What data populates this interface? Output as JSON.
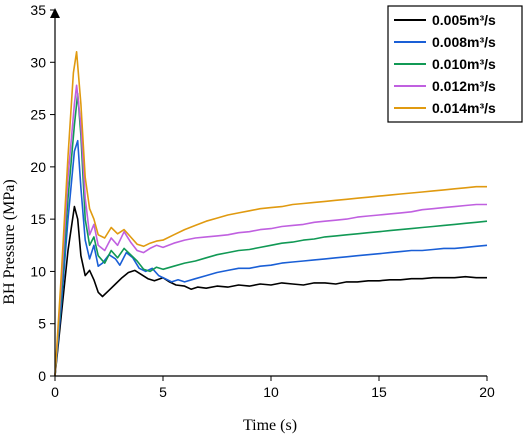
{
  "chart_data": {
    "type": "line",
    "title": "",
    "xlabel": "Time (s)",
    "ylabel": "BH Pressure (MPa)",
    "xlim": [
      0,
      20
    ],
    "ylim": [
      0,
      35
    ],
    "x_ticks": [
      0,
      5,
      10,
      15,
      20
    ],
    "y_ticks": [
      0,
      5,
      10,
      15,
      20,
      25,
      30,
      35
    ],
    "grid": false,
    "legend_position": "top-right",
    "series": [
      {
        "name": "0.005m³/s",
        "color": "#000000",
        "points": [
          [
            0,
            0
          ],
          [
            0.3,
            6
          ],
          [
            0.6,
            12
          ],
          [
            0.9,
            16.2
          ],
          [
            1.05,
            15
          ],
          [
            1.2,
            11.5
          ],
          [
            1.4,
            9.6
          ],
          [
            1.6,
            10.1
          ],
          [
            1.8,
            9.2
          ],
          [
            2.0,
            8.0
          ],
          [
            2.2,
            7.6
          ],
          [
            2.5,
            8.2
          ],
          [
            2.8,
            8.8
          ],
          [
            3.1,
            9.4
          ],
          [
            3.4,
            9.9
          ],
          [
            3.7,
            10.1
          ],
          [
            4.0,
            9.7
          ],
          [
            4.3,
            9.3
          ],
          [
            4.6,
            9.1
          ],
          [
            5.0,
            9.4
          ],
          [
            5.3,
            9.0
          ],
          [
            5.6,
            8.7
          ],
          [
            6.0,
            8.6
          ],
          [
            6.3,
            8.3
          ],
          [
            6.6,
            8.5
          ],
          [
            7.0,
            8.4
          ],
          [
            7.5,
            8.6
          ],
          [
            8.0,
            8.5
          ],
          [
            8.5,
            8.7
          ],
          [
            9.0,
            8.6
          ],
          [
            9.5,
            8.8
          ],
          [
            10.0,
            8.7
          ],
          [
            10.5,
            8.9
          ],
          [
            11.0,
            8.8
          ],
          [
            11.5,
            8.7
          ],
          [
            12.0,
            8.9
          ],
          [
            12.5,
            8.9
          ],
          [
            13.0,
            8.8
          ],
          [
            13.5,
            9.0
          ],
          [
            14.0,
            9.0
          ],
          [
            14.5,
            9.1
          ],
          [
            15.0,
            9.1
          ],
          [
            15.5,
            9.2
          ],
          [
            16.0,
            9.2
          ],
          [
            16.5,
            9.3
          ],
          [
            17.0,
            9.3
          ],
          [
            17.5,
            9.4
          ],
          [
            18.0,
            9.4
          ],
          [
            18.5,
            9.4
          ],
          [
            19.0,
            9.5
          ],
          [
            19.5,
            9.4
          ],
          [
            20.0,
            9.4
          ]
        ]
      },
      {
        "name": "0.008m³/s",
        "color": "#1a5fd6",
        "points": [
          [
            0,
            0
          ],
          [
            0.3,
            7
          ],
          [
            0.6,
            15
          ],
          [
            0.9,
            21.5
          ],
          [
            1.05,
            22.5
          ],
          [
            1.2,
            18
          ],
          [
            1.4,
            13
          ],
          [
            1.6,
            11.2
          ],
          [
            1.8,
            12.5
          ],
          [
            2.0,
            10.5
          ],
          [
            2.2,
            10.8
          ],
          [
            2.5,
            11.6
          ],
          [
            2.8,
            11.2
          ],
          [
            3.0,
            10.6
          ],
          [
            3.3,
            11.8
          ],
          [
            3.6,
            11.3
          ],
          [
            3.9,
            10.3
          ],
          [
            4.2,
            10.0
          ],
          [
            4.5,
            10.3
          ],
          [
            4.8,
            9.6
          ],
          [
            5.1,
            9.3
          ],
          [
            5.4,
            9.0
          ],
          [
            5.7,
            9.2
          ],
          [
            6.0,
            9.0
          ],
          [
            6.5,
            9.3
          ],
          [
            7.0,
            9.6
          ],
          [
            7.5,
            9.9
          ],
          [
            8.0,
            10.1
          ],
          [
            8.5,
            10.3
          ],
          [
            9.0,
            10.3
          ],
          [
            9.5,
            10.5
          ],
          [
            10.0,
            10.6
          ],
          [
            10.5,
            10.8
          ],
          [
            11.0,
            10.9
          ],
          [
            11.5,
            11.0
          ],
          [
            12.0,
            11.1
          ],
          [
            12.5,
            11.2
          ],
          [
            13.0,
            11.3
          ],
          [
            13.5,
            11.4
          ],
          [
            14.0,
            11.5
          ],
          [
            14.5,
            11.6
          ],
          [
            15.0,
            11.7
          ],
          [
            15.5,
            11.8
          ],
          [
            16.0,
            11.9
          ],
          [
            16.5,
            12.0
          ],
          [
            17.0,
            12.0
          ],
          [
            17.5,
            12.1
          ],
          [
            18.0,
            12.2
          ],
          [
            18.5,
            12.2
          ],
          [
            19.0,
            12.3
          ],
          [
            19.5,
            12.4
          ],
          [
            20.0,
            12.5
          ]
        ]
      },
      {
        "name": "0.010m³/s",
        "color": "#119955",
        "points": [
          [
            0,
            0
          ],
          [
            0.3,
            8
          ],
          [
            0.6,
            17
          ],
          [
            0.9,
            24
          ],
          [
            1.05,
            27
          ],
          [
            1.2,
            23
          ],
          [
            1.4,
            15
          ],
          [
            1.6,
            12.5
          ],
          [
            1.8,
            13.3
          ],
          [
            2.0,
            11.5
          ],
          [
            2.3,
            10.8
          ],
          [
            2.6,
            12.0
          ],
          [
            2.9,
            11.3
          ],
          [
            3.2,
            12.2
          ],
          [
            3.5,
            11.6
          ],
          [
            3.8,
            11.0
          ],
          [
            4.1,
            10.2
          ],
          [
            4.4,
            10.0
          ],
          [
            4.7,
            10.4
          ],
          [
            5.0,
            10.2
          ],
          [
            5.5,
            10.5
          ],
          [
            6.0,
            10.8
          ],
          [
            6.5,
            11.0
          ],
          [
            7.0,
            11.3
          ],
          [
            7.5,
            11.6
          ],
          [
            8.0,
            11.8
          ],
          [
            8.5,
            12.0
          ],
          [
            9.0,
            12.1
          ],
          [
            9.5,
            12.3
          ],
          [
            10.0,
            12.5
          ],
          [
            10.5,
            12.7
          ],
          [
            11.0,
            12.8
          ],
          [
            11.5,
            13.0
          ],
          [
            12.0,
            13.1
          ],
          [
            12.5,
            13.3
          ],
          [
            13.0,
            13.4
          ],
          [
            13.5,
            13.5
          ],
          [
            14.0,
            13.6
          ],
          [
            14.5,
            13.7
          ],
          [
            15.0,
            13.8
          ],
          [
            15.5,
            13.9
          ],
          [
            16.0,
            14.0
          ],
          [
            16.5,
            14.1
          ],
          [
            17.0,
            14.2
          ],
          [
            17.5,
            14.3
          ],
          [
            18.0,
            14.4
          ],
          [
            18.5,
            14.5
          ],
          [
            19.0,
            14.6
          ],
          [
            19.5,
            14.7
          ],
          [
            20.0,
            14.8
          ]
        ]
      },
      {
        "name": "0.012m³/s",
        "color": "#c060e0",
        "points": [
          [
            0,
            0
          ],
          [
            0.3,
            9
          ],
          [
            0.6,
            19
          ],
          [
            0.9,
            26
          ],
          [
            1.0,
            27.8
          ],
          [
            1.2,
            24
          ],
          [
            1.4,
            17
          ],
          [
            1.6,
            13.5
          ],
          [
            1.8,
            14.5
          ],
          [
            2.0,
            12.5
          ],
          [
            2.3,
            12.0
          ],
          [
            2.6,
            13.2
          ],
          [
            2.9,
            12.5
          ],
          [
            3.2,
            13.8
          ],
          [
            3.5,
            12.8
          ],
          [
            3.8,
            12.0
          ],
          [
            4.1,
            11.8
          ],
          [
            4.4,
            12.2
          ],
          [
            4.7,
            12.5
          ],
          [
            5.0,
            12.3
          ],
          [
            5.5,
            12.7
          ],
          [
            6.0,
            13.0
          ],
          [
            6.5,
            13.2
          ],
          [
            7.0,
            13.3
          ],
          [
            7.5,
            13.4
          ],
          [
            8.0,
            13.5
          ],
          [
            8.5,
            13.7
          ],
          [
            9.0,
            13.8
          ],
          [
            9.5,
            14.0
          ],
          [
            10.0,
            14.1
          ],
          [
            10.5,
            14.3
          ],
          [
            11.0,
            14.4
          ],
          [
            11.5,
            14.5
          ],
          [
            12.0,
            14.7
          ],
          [
            12.5,
            14.8
          ],
          [
            13.0,
            14.9
          ],
          [
            13.5,
            15.0
          ],
          [
            14.0,
            15.2
          ],
          [
            14.5,
            15.3
          ],
          [
            15.0,
            15.4
          ],
          [
            15.5,
            15.5
          ],
          [
            16.0,
            15.6
          ],
          [
            16.5,
            15.7
          ],
          [
            17.0,
            15.9
          ],
          [
            17.5,
            16.0
          ],
          [
            18.0,
            16.1
          ],
          [
            18.5,
            16.2
          ],
          [
            19.0,
            16.3
          ],
          [
            19.5,
            16.4
          ],
          [
            20.0,
            16.4
          ]
        ]
      },
      {
        "name": "0.014m³/s",
        "color": "#e09a10",
        "points": [
          [
            0,
            0
          ],
          [
            0.3,
            10
          ],
          [
            0.6,
            21
          ],
          [
            0.85,
            29
          ],
          [
            1.0,
            31
          ],
          [
            1.2,
            26
          ],
          [
            1.4,
            19
          ],
          [
            1.6,
            16
          ],
          [
            1.8,
            15
          ],
          [
            2.0,
            13.5
          ],
          [
            2.3,
            13.2
          ],
          [
            2.6,
            14.2
          ],
          [
            2.9,
            13.6
          ],
          [
            3.2,
            14.0
          ],
          [
            3.5,
            13.3
          ],
          [
            3.8,
            12.6
          ],
          [
            4.1,
            12.4
          ],
          [
            4.4,
            12.7
          ],
          [
            4.7,
            12.9
          ],
          [
            5.0,
            13.0
          ],
          [
            5.5,
            13.5
          ],
          [
            6.0,
            14.0
          ],
          [
            6.5,
            14.4
          ],
          [
            7.0,
            14.8
          ],
          [
            7.5,
            15.1
          ],
          [
            8.0,
            15.4
          ],
          [
            8.5,
            15.6
          ],
          [
            9.0,
            15.8
          ],
          [
            9.5,
            16.0
          ],
          [
            10.0,
            16.1
          ],
          [
            10.5,
            16.2
          ],
          [
            11.0,
            16.4
          ],
          [
            11.5,
            16.5
          ],
          [
            12.0,
            16.6
          ],
          [
            12.5,
            16.7
          ],
          [
            13.0,
            16.8
          ],
          [
            13.5,
            16.9
          ],
          [
            14.0,
            17.0
          ],
          [
            14.5,
            17.1
          ],
          [
            15.0,
            17.2
          ],
          [
            15.5,
            17.3
          ],
          [
            16.0,
            17.4
          ],
          [
            16.5,
            17.5
          ],
          [
            17.0,
            17.6
          ],
          [
            17.5,
            17.7
          ],
          [
            18.0,
            17.8
          ],
          [
            18.5,
            17.9
          ],
          [
            19.0,
            18.0
          ],
          [
            19.5,
            18.1
          ],
          [
            20.0,
            18.1
          ]
        ]
      }
    ]
  }
}
